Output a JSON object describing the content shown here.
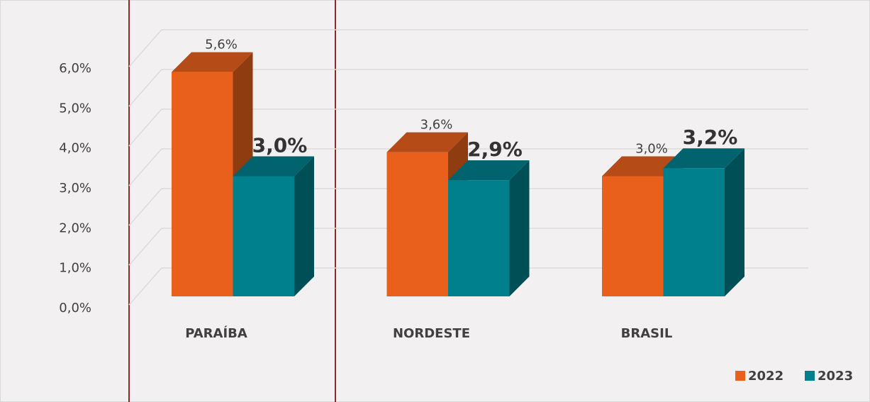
{
  "chart_data": {
    "type": "bar3d",
    "categories": [
      "PARAÍBA",
      "NORDESTE",
      "BRASIL"
    ],
    "series": [
      {
        "name": "2022",
        "color": "#e8601c",
        "values": [
          5.6,
          3.6,
          3.0
        ],
        "value_labels": [
          "5,6%",
          "3,6%",
          "3,0%"
        ]
      },
      {
        "name": "2023",
        "color": "#007f8c",
        "values": [
          3.0,
          2.9,
          3.2
        ],
        "value_labels": [
          "3,0%",
          "2,9%",
          "3,2%"
        ]
      }
    ],
    "ylim": [
      0,
      6
    ],
    "yticks": [
      {
        "value": 0,
        "label": "0,0%"
      },
      {
        "value": 1,
        "label": "1,0%"
      },
      {
        "value": 2,
        "label": "2,0%"
      },
      {
        "value": 3,
        "label": "3,0%"
      },
      {
        "value": 4,
        "label": "4,0%"
      },
      {
        "value": 5,
        "label": "5,0%"
      },
      {
        "value": 6,
        "label": "6,0%"
      }
    ],
    "grid": true,
    "legend": "bottom-right"
  }
}
